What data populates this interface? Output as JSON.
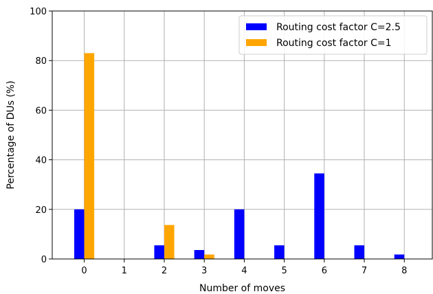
{
  "chart_data": {
    "type": "bar",
    "title": "",
    "xlabel": "Number of moves",
    "ylabel": "Percentage of DUs (%)",
    "categories": [
      "0",
      "1",
      "2",
      "3",
      "4",
      "5",
      "6",
      "7",
      "8"
    ],
    "x": [
      0,
      1,
      2,
      3,
      4,
      5,
      6,
      7,
      8
    ],
    "ylim": [
      0,
      100
    ],
    "yticks": [
      0,
      20,
      40,
      60,
      80,
      100
    ],
    "xlim": [
      -0.8,
      8.7
    ],
    "grid": true,
    "legend_position": "top-right",
    "series": [
      {
        "name": "Routing cost factor C=2.5",
        "color": "#0000ff",
        "values": [
          20.0,
          0,
          5.5,
          3.6,
          20.0,
          5.5,
          34.5,
          5.5,
          1.8
        ]
      },
      {
        "name": "Routing cost factor C=1",
        "color": "#ffa500",
        "values": [
          83.0,
          0,
          13.7,
          1.8,
          0,
          0,
          0,
          0,
          0
        ]
      }
    ]
  }
}
